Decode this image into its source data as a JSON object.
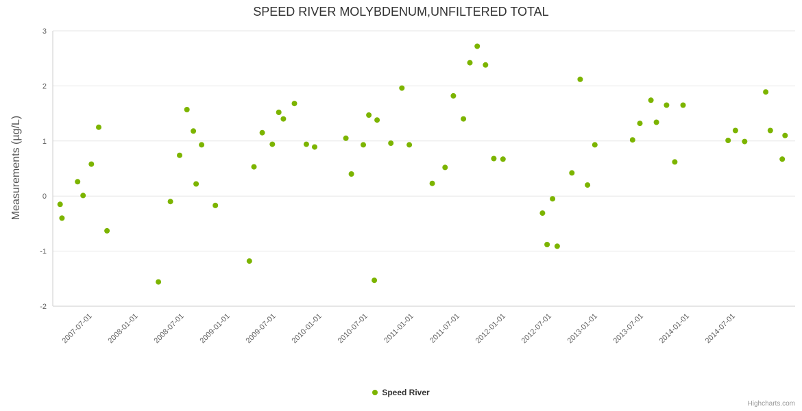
{
  "chart_data": {
    "type": "scatter",
    "title": "SPEED RIVER MOLYBDENUM,UNFILTERED TOTAL",
    "ylabel": "Measurements (µg/L)",
    "xlabel": "",
    "ylim": [
      -2,
      3
    ],
    "xlim": [
      2007.07,
      2015.15
    ],
    "yticks": [
      -2,
      -1,
      0,
      1,
      2,
      3
    ],
    "grid": true,
    "legend_position": "bottom-center",
    "marker_color": "#7cb400",
    "gridline_color": "#e6e6e6",
    "axisline_color": "#cccccc",
    "xticks": [
      {
        "x": 2007.5,
        "label": "2007-07-01"
      },
      {
        "x": 2008.0,
        "label": "2008-01-01"
      },
      {
        "x": 2008.5,
        "label": "2008-07-01"
      },
      {
        "x": 2009.0,
        "label": "2009-01-01"
      },
      {
        "x": 2009.5,
        "label": "2009-07-01"
      },
      {
        "x": 2010.0,
        "label": "2010-01-01"
      },
      {
        "x": 2010.5,
        "label": "2010-07-01"
      },
      {
        "x": 2011.0,
        "label": "2011-01-01"
      },
      {
        "x": 2011.5,
        "label": "2011-07-01"
      },
      {
        "x": 2012.0,
        "label": "2012-01-01"
      },
      {
        "x": 2012.5,
        "label": "2012-07-01"
      },
      {
        "x": 2013.0,
        "label": "2013-01-01"
      },
      {
        "x": 2013.5,
        "label": "2013-07-01"
      },
      {
        "x": 2014.0,
        "label": "2014-01-01"
      },
      {
        "x": 2014.5,
        "label": "2014-07-01"
      }
    ],
    "series": [
      {
        "name": "Speed River",
        "color": "#7cb400",
        "points": [
          [
            2007.15,
            -0.15
          ],
          [
            2007.17,
            -0.4
          ],
          [
            2007.34,
            0.26
          ],
          [
            2007.4,
            0.01
          ],
          [
            2007.49,
            0.58
          ],
          [
            2007.57,
            1.25
          ],
          [
            2007.66,
            -0.63
          ],
          [
            2008.22,
            -1.56
          ],
          [
            2008.35,
            -0.1
          ],
          [
            2008.45,
            0.74
          ],
          [
            2008.53,
            1.57
          ],
          [
            2008.6,
            1.18
          ],
          [
            2008.63,
            0.22
          ],
          [
            2008.69,
            0.93
          ],
          [
            2008.84,
            -0.17
          ],
          [
            2009.21,
            -1.18
          ],
          [
            2009.26,
            0.53
          ],
          [
            2009.35,
            1.15
          ],
          [
            2009.46,
            0.94
          ],
          [
            2009.53,
            1.52
          ],
          [
            2009.58,
            1.4
          ],
          [
            2009.7,
            1.68
          ],
          [
            2009.83,
            0.94
          ],
          [
            2009.92,
            0.89
          ],
          [
            2010.26,
            1.05
          ],
          [
            2010.32,
            0.4
          ],
          [
            2010.45,
            0.93
          ],
          [
            2010.51,
            1.47
          ],
          [
            2010.57,
            -1.53
          ],
          [
            2010.6,
            1.38
          ],
          [
            2010.75,
            0.96
          ],
          [
            2010.87,
            1.96
          ],
          [
            2010.95,
            0.93
          ],
          [
            2011.2,
            0.23
          ],
          [
            2011.34,
            0.52
          ],
          [
            2011.43,
            1.82
          ],
          [
            2011.54,
            1.4
          ],
          [
            2011.61,
            2.42
          ],
          [
            2011.69,
            2.72
          ],
          [
            2011.78,
            2.38
          ],
          [
            2011.87,
            0.68
          ],
          [
            2011.97,
            0.67
          ],
          [
            2012.4,
            -0.31
          ],
          [
            2012.45,
            -0.88
          ],
          [
            2012.51,
            -0.05
          ],
          [
            2012.56,
            -0.91
          ],
          [
            2012.72,
            0.42
          ],
          [
            2012.81,
            2.12
          ],
          [
            2012.89,
            0.2
          ],
          [
            2012.97,
            0.93
          ],
          [
            2013.38,
            1.02
          ],
          [
            2013.46,
            1.32
          ],
          [
            2013.58,
            1.74
          ],
          [
            2013.64,
            1.34
          ],
          [
            2013.75,
            1.65
          ],
          [
            2013.84,
            0.62
          ],
          [
            2013.93,
            1.65
          ],
          [
            2014.42,
            1.01
          ],
          [
            2014.5,
            1.19
          ],
          [
            2014.6,
            0.99
          ],
          [
            2014.83,
            1.89
          ],
          [
            2014.88,
            1.19
          ],
          [
            2015.01,
            0.67
          ],
          [
            2015.04,
            1.1
          ]
        ]
      }
    ],
    "credits": "Highcharts.com"
  }
}
